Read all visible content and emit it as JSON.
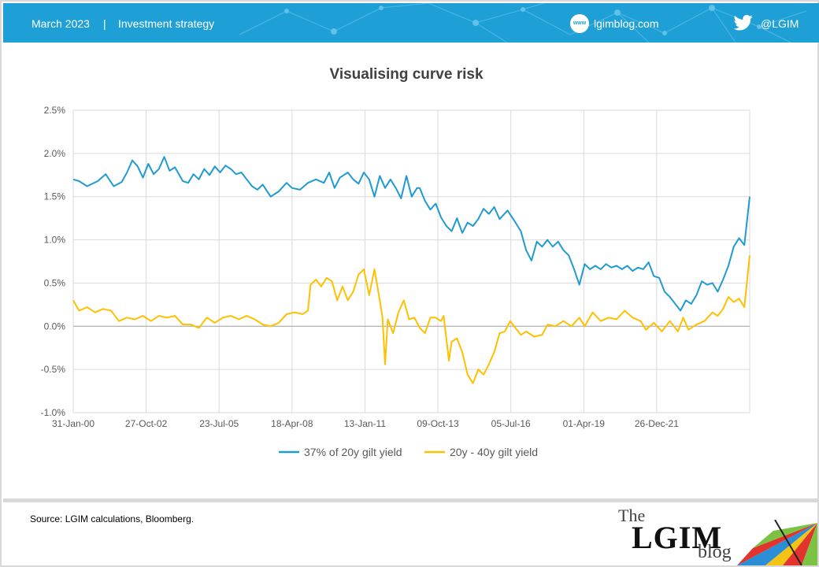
{
  "header": {
    "date": "March 2023",
    "separator": "|",
    "section": "Investment strategy",
    "web_icon_label": "www",
    "website": "lgimblog.com",
    "twitter_icon": "twitter-bird-icon",
    "handle": "@LGIM"
  },
  "footer": {
    "source": "Source: LGIM calculations, Bloomberg.",
    "logo_the": "The",
    "logo_lgim": "LGIM",
    "logo_blog": "blog"
  },
  "colors": {
    "header_bg": "#1ea0d7",
    "series_1": "#1f9bd1",
    "series_2": "#ffc000",
    "grid": "#d9d9d9"
  },
  "chart_data": {
    "type": "line",
    "title": "Visualising  curve risk",
    "xlabel": "",
    "ylabel": "",
    "x_start": "31-Jan-00",
    "x_end": "31-Jan-23",
    "x_tick_labels": [
      "31-Jan-00",
      "27-Oct-02",
      "23-Jul-05",
      "18-Apr-08",
      "13-Jan-11",
      "09-Oct-13",
      "05-Jul-16",
      "01-Apr-19",
      "26-Dec-21"
    ],
    "y_tick_labels": [
      "2.5%",
      "2.0%",
      "1.5%",
      "1.0%",
      "0.5%",
      "0.0%",
      "-0.5%",
      "-1.0%"
    ],
    "ylim": [
      -1.0,
      2.5
    ],
    "y_unit": "%",
    "grid": true,
    "legend_position": "bottom",
    "series": [
      {
        "name": "37% of 20y gilt yield",
        "color": "#1f9bd1",
        "points": [
          [
            2000.08,
            1.7
          ],
          [
            2000.3,
            1.68
          ],
          [
            2000.6,
            1.62
          ],
          [
            2001.0,
            1.68
          ],
          [
            2001.3,
            1.76
          ],
          [
            2001.6,
            1.62
          ],
          [
            2001.9,
            1.67
          ],
          [
            2002.1,
            1.78
          ],
          [
            2002.3,
            1.92
          ],
          [
            2002.5,
            1.85
          ],
          [
            2002.7,
            1.72
          ],
          [
            2002.9,
            1.88
          ],
          [
            2003.1,
            1.76
          ],
          [
            2003.3,
            1.82
          ],
          [
            2003.5,
            1.96
          ],
          [
            2003.7,
            1.8
          ],
          [
            2003.9,
            1.84
          ],
          [
            2004.2,
            1.68
          ],
          [
            2004.4,
            1.66
          ],
          [
            2004.6,
            1.76
          ],
          [
            2004.8,
            1.7
          ],
          [
            2005.0,
            1.82
          ],
          [
            2005.2,
            1.75
          ],
          [
            2005.4,
            1.85
          ],
          [
            2005.6,
            1.78
          ],
          [
            2005.8,
            1.86
          ],
          [
            2006.0,
            1.82
          ],
          [
            2006.2,
            1.76
          ],
          [
            2006.4,
            1.78
          ],
          [
            2006.6,
            1.7
          ],
          [
            2006.8,
            1.62
          ],
          [
            2007.0,
            1.58
          ],
          [
            2007.2,
            1.64
          ],
          [
            2007.5,
            1.5
          ],
          [
            2007.8,
            1.56
          ],
          [
            2008.1,
            1.66
          ],
          [
            2008.3,
            1.6
          ],
          [
            2008.6,
            1.58
          ],
          [
            2008.9,
            1.66
          ],
          [
            2009.2,
            1.7
          ],
          [
            2009.5,
            1.66
          ],
          [
            2009.7,
            1.78
          ],
          [
            2009.9,
            1.6
          ],
          [
            2010.1,
            1.72
          ],
          [
            2010.4,
            1.78
          ],
          [
            2010.6,
            1.7
          ],
          [
            2010.8,
            1.65
          ],
          [
            2011.0,
            1.78
          ],
          [
            2011.2,
            1.7
          ],
          [
            2011.4,
            1.5
          ],
          [
            2011.6,
            1.74
          ],
          [
            2011.8,
            1.6
          ],
          [
            2012.0,
            1.7
          ],
          [
            2012.2,
            1.6
          ],
          [
            2012.4,
            1.48
          ],
          [
            2012.6,
            1.74
          ],
          [
            2012.8,
            1.5
          ],
          [
            2013.0,
            1.6
          ],
          [
            2013.1,
            1.6
          ],
          [
            2013.3,
            1.45
          ],
          [
            2013.5,
            1.35
          ],
          [
            2013.7,
            1.42
          ],
          [
            2013.9,
            1.26
          ],
          [
            2014.1,
            1.16
          ],
          [
            2014.3,
            1.1
          ],
          [
            2014.5,
            1.25
          ],
          [
            2014.7,
            1.08
          ],
          [
            2014.9,
            1.2
          ],
          [
            2015.1,
            1.16
          ],
          [
            2015.3,
            1.24
          ],
          [
            2015.5,
            1.36
          ],
          [
            2015.7,
            1.3
          ],
          [
            2015.9,
            1.38
          ],
          [
            2016.1,
            1.24
          ],
          [
            2016.4,
            1.34
          ],
          [
            2016.7,
            1.2
          ],
          [
            2016.9,
            1.1
          ],
          [
            2017.1,
            0.88
          ],
          [
            2017.3,
            0.76
          ],
          [
            2017.5,
            0.98
          ],
          [
            2017.7,
            0.92
          ],
          [
            2017.9,
            1.0
          ],
          [
            2018.1,
            0.92
          ],
          [
            2018.3,
            0.98
          ],
          [
            2018.5,
            0.88
          ],
          [
            2018.7,
            0.82
          ],
          [
            2018.9,
            0.66
          ],
          [
            2019.1,
            0.48
          ],
          [
            2019.3,
            0.72
          ],
          [
            2019.5,
            0.66
          ],
          [
            2019.7,
            0.7
          ],
          [
            2019.9,
            0.66
          ],
          [
            2020.1,
            0.72
          ],
          [
            2020.3,
            0.68
          ],
          [
            2020.5,
            0.7
          ],
          [
            2020.7,
            0.66
          ],
          [
            2020.9,
            0.7
          ],
          [
            2021.1,
            0.64
          ],
          [
            2021.3,
            0.68
          ],
          [
            2021.5,
            0.66
          ],
          [
            2021.7,
            0.74
          ],
          [
            2021.9,
            0.58
          ],
          [
            2022.1,
            0.56
          ],
          [
            2022.3,
            0.4
          ],
          [
            2022.5,
            0.34
          ],
          [
            2022.7,
            0.26
          ],
          [
            2022.9,
            0.18
          ],
          [
            2023.1,
            0.3
          ],
          [
            2023.3,
            0.26
          ],
          [
            2023.5,
            0.36
          ],
          [
            2023.7,
            0.52
          ],
          [
            2023.9,
            0.48
          ],
          [
            2024.1,
            0.5
          ],
          [
            2024.3,
            0.4
          ],
          [
            2024.5,
            0.54
          ],
          [
            2024.7,
            0.7
          ],
          [
            2024.9,
            0.92
          ],
          [
            2025.1,
            1.02
          ],
          [
            2025.3,
            0.94
          ],
          [
            2025.5,
            1.5
          ]
        ]
      },
      {
        "name": "20y - 40y gilt yield",
        "color": "#ffc000",
        "points": [
          [
            2000.08,
            0.3
          ],
          [
            2000.3,
            0.18
          ],
          [
            2000.6,
            0.22
          ],
          [
            2000.9,
            0.16
          ],
          [
            2001.2,
            0.2
          ],
          [
            2001.5,
            0.18
          ],
          [
            2001.8,
            0.06
          ],
          [
            2002.1,
            0.1
          ],
          [
            2002.4,
            0.08
          ],
          [
            2002.7,
            0.12
          ],
          [
            2003.0,
            0.06
          ],
          [
            2003.3,
            0.12
          ],
          [
            2003.6,
            0.1
          ],
          [
            2003.9,
            0.12
          ],
          [
            2004.2,
            0.02
          ],
          [
            2004.5,
            0.02
          ],
          [
            2004.8,
            -0.02
          ],
          [
            2005.1,
            0.1
          ],
          [
            2005.4,
            0.04
          ],
          [
            2005.7,
            0.1
          ],
          [
            2006.0,
            0.12
          ],
          [
            2006.3,
            0.08
          ],
          [
            2006.6,
            0.12
          ],
          [
            2006.9,
            0.08
          ],
          [
            2007.2,
            0.02
          ],
          [
            2007.5,
            0.0
          ],
          [
            2007.8,
            0.04
          ],
          [
            2008.1,
            0.14
          ],
          [
            2008.4,
            0.16
          ],
          [
            2008.7,
            0.14
          ],
          [
            2008.9,
            0.18
          ],
          [
            2009.0,
            0.48
          ],
          [
            2009.2,
            0.54
          ],
          [
            2009.4,
            0.46
          ],
          [
            2009.6,
            0.56
          ],
          [
            2009.8,
            0.52
          ],
          [
            2010.0,
            0.3
          ],
          [
            2010.2,
            0.46
          ],
          [
            2010.4,
            0.3
          ],
          [
            2010.6,
            0.4
          ],
          [
            2010.8,
            0.6
          ],
          [
            2011.0,
            0.66
          ],
          [
            2011.2,
            0.36
          ],
          [
            2011.4,
            0.66
          ],
          [
            2011.6,
            0.3
          ],
          [
            2011.7,
            0.1
          ],
          [
            2011.8,
            -0.44
          ],
          [
            2011.9,
            0.08
          ],
          [
            2012.1,
            -0.08
          ],
          [
            2012.3,
            0.16
          ],
          [
            2012.5,
            0.3
          ],
          [
            2012.7,
            0.08
          ],
          [
            2012.9,
            0.1
          ],
          [
            2013.1,
            -0.02
          ],
          [
            2013.3,
            -0.08
          ],
          [
            2013.5,
            0.1
          ],
          [
            2013.7,
            0.1
          ],
          [
            2013.9,
            0.06
          ],
          [
            2014.0,
            0.12
          ],
          [
            2014.2,
            -0.4
          ],
          [
            2014.3,
            -0.18
          ],
          [
            2014.5,
            -0.14
          ],
          [
            2014.7,
            -0.3
          ],
          [
            2014.9,
            -0.56
          ],
          [
            2015.1,
            -0.66
          ],
          [
            2015.3,
            -0.5
          ],
          [
            2015.5,
            -0.56
          ],
          [
            2015.7,
            -0.44
          ],
          [
            2015.9,
            -0.3
          ],
          [
            2016.1,
            -0.08
          ],
          [
            2016.3,
            -0.06
          ],
          [
            2016.5,
            0.06
          ],
          [
            2016.7,
            -0.02
          ],
          [
            2016.9,
            -0.1
          ],
          [
            2017.1,
            -0.06
          ],
          [
            2017.4,
            -0.12
          ],
          [
            2017.7,
            -0.1
          ],
          [
            2017.9,
            0.02
          ],
          [
            2018.2,
            0.0
          ],
          [
            2018.5,
            0.06
          ],
          [
            2018.8,
            0.0
          ],
          [
            2019.1,
            0.1
          ],
          [
            2019.3,
            0.0
          ],
          [
            2019.6,
            0.16
          ],
          [
            2019.9,
            0.06
          ],
          [
            2020.2,
            0.1
          ],
          [
            2020.5,
            0.08
          ],
          [
            2020.8,
            0.18
          ],
          [
            2021.1,
            0.1
          ],
          [
            2021.4,
            0.06
          ],
          [
            2021.6,
            -0.04
          ],
          [
            2021.9,
            0.04
          ],
          [
            2022.2,
            -0.06
          ],
          [
            2022.5,
            0.06
          ],
          [
            2022.8,
            -0.06
          ],
          [
            2023.0,
            0.1
          ],
          [
            2023.2,
            -0.04
          ],
          [
            2023.5,
            0.02
          ],
          [
            2023.8,
            0.06
          ],
          [
            2024.1,
            0.16
          ],
          [
            2024.3,
            0.12
          ],
          [
            2024.5,
            0.2
          ],
          [
            2024.7,
            0.34
          ],
          [
            2024.9,
            0.28
          ],
          [
            2025.1,
            0.32
          ],
          [
            2025.3,
            0.22
          ],
          [
            2025.5,
            0.82
          ]
        ]
      }
    ]
  }
}
